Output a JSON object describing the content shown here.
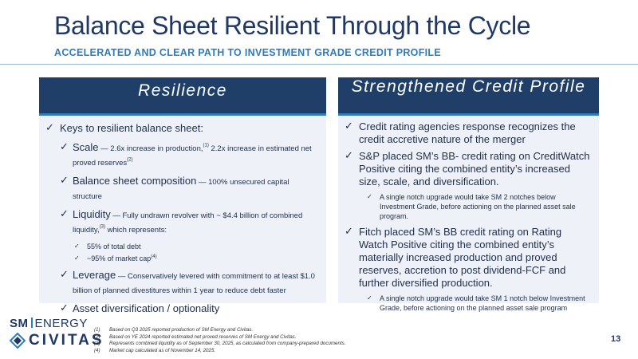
{
  "header": {
    "title": "Balance Sheet Resilient Through the Cycle",
    "subtitle": "ACCELERATED AND CLEAR PATH TO INVESTMENT GRADE CREDIT PROFILE"
  },
  "left_panel": {
    "heading": "Resilience",
    "keys": "Keys to resilient balance sheet:",
    "scale_title": "Scale",
    "scale_text_1": " — 2.6x increase in production,",
    "scale_sup_1": "(1)",
    "scale_text_2": " 2.2x increase in estimated net proved reserves",
    "scale_sup_2": "(2)",
    "bsc_title": "Balance sheet composition",
    "bsc_text": " — 100% unsecured capital structure",
    "liq_title": "Liquidity",
    "liq_text_1": " — Fully undrawn revolver with ~ $4.4 billion of combined liquidity,",
    "liq_sup": "(3)",
    "liq_text_2": " which represents:",
    "liq_sub_1": "55% of total debt",
    "liq_sub_2": "~95% of market cap",
    "liq_sub_2_sup": "(4)",
    "lev_title": "Leverage",
    "lev_text": " — Conservatively levered with commitment to at least $1.0 billion of planned divestitures within 1 year to reduce debt faster",
    "asset": "Asset diversification / optionality"
  },
  "right_panel": {
    "heading": "Strengthened Credit Profile",
    "b1": "Credit rating agencies response recognizes the credit accretive nature of the merger",
    "b2": "S&P placed SM’s BB- credit rating on CreditWatch Positive citing the combined entity’s increased size, scale, and diversification.",
    "b2_sub": "A single notch upgrade would take SM 2 notches below Investment Grade, before actioning on the planned asset sale program.",
    "b3": "Fitch placed SM’s BB credit rating on Rating Watch Positive citing  the combined entity’s materially increased production and proved reserves, accretion to post dividend-FCF and further diversified production.",
    "b3_sub": "A single notch upgrade would take SM 1 notch below Investment Grade, before actioning on the planned asset sale program"
  },
  "footer": {
    "logo_sm": "SM",
    "logo_energy": "ENERGY",
    "logo_civitas": "CIVITAS",
    "footnotes": [
      {
        "num": "(1)",
        "text": "Based on Q3 2025 reported production of SM Energy and Civitas."
      },
      {
        "num": "(2)",
        "text": "Based on YE 2024 reported estimated net proved reserves of SM Energy and Civitas."
      },
      {
        "num": "(3)",
        "text": "Represents combined liquidity as of September 30, 2025, as calculated from company-prepared documents."
      },
      {
        "num": "(4)",
        "text": "Market cap calculated as of November 14, 2025."
      }
    ],
    "page_number": "13"
  },
  "icons": {
    "check": "checkmark-icon",
    "logo_mark": "civitas-mark-icon"
  },
  "colors": {
    "navy": "#1f3864",
    "header_bg": "#1f3f68",
    "accent_blue": "#2e7bbf",
    "panel_bg": "#eef2f8"
  }
}
